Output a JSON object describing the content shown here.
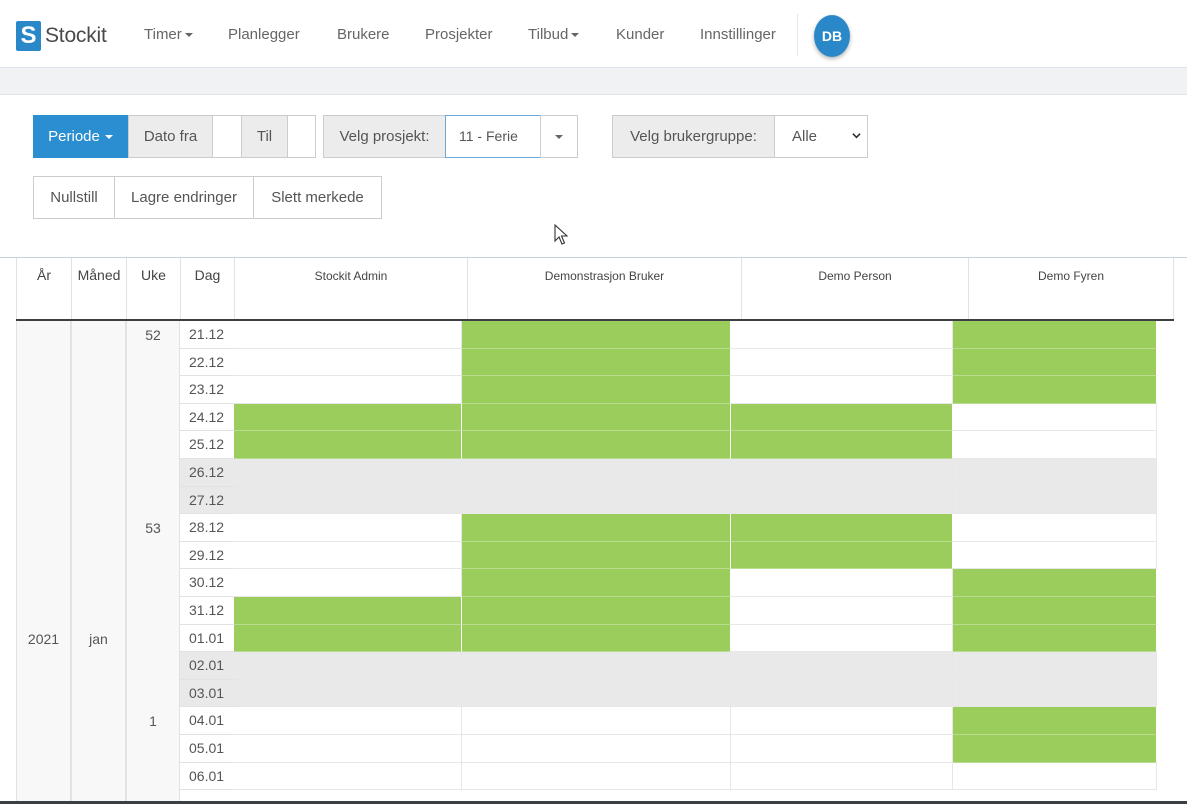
{
  "navbar": {
    "brand_logo": "S",
    "brand_name": "Stockit",
    "items": [
      "Timer",
      "Planlegger",
      "Brukere",
      "Prosjekter",
      "Tilbud",
      "Kunder",
      "Innstillinger"
    ],
    "avatar_initials": "DB"
  },
  "filters": {
    "period_label": "Periode",
    "date_from_label": "Dato fra",
    "date_from_value": "",
    "date_to_label": "Til",
    "date_to_value": "",
    "project_label": "Velg prosjekt:",
    "project_value": "11 - Ferie",
    "usergroup_label": "Velg brukergruppe:",
    "usergroup_value": "Alle",
    "reset_label": "Nullstill",
    "save_label": "Lagre endringer",
    "delete_label": "Slett merkede"
  },
  "grid": {
    "headers": {
      "year": "År",
      "month": "Måned",
      "week": "Uke",
      "day": "Dag"
    },
    "users": [
      "Stockit Admin",
      "Demonstrasjon Bruker",
      "Demo Person",
      "Demo Fyren"
    ],
    "year_label": "2021",
    "month_label": "jan",
    "weeks": [
      {
        "label": "52",
        "start_row": 0
      },
      {
        "label": "53",
        "start_row": 7
      },
      {
        "label": "1",
        "start_row": 14
      }
    ],
    "days": [
      {
        "date": "21.12",
        "weekend": false,
        "marks": [
          0,
          1,
          0,
          1
        ]
      },
      {
        "date": "22.12",
        "weekend": false,
        "marks": [
          0,
          1,
          0,
          1
        ]
      },
      {
        "date": "23.12",
        "weekend": false,
        "marks": [
          0,
          1,
          0,
          1
        ]
      },
      {
        "date": "24.12",
        "weekend": false,
        "marks": [
          1,
          1,
          1,
          0
        ]
      },
      {
        "date": "25.12",
        "weekend": false,
        "marks": [
          1,
          1,
          1,
          0
        ]
      },
      {
        "date": "26.12",
        "weekend": true,
        "marks": [
          0,
          0,
          0,
          0
        ]
      },
      {
        "date": "27.12",
        "weekend": true,
        "marks": [
          0,
          0,
          0,
          0
        ]
      },
      {
        "date": "28.12",
        "weekend": false,
        "marks": [
          0,
          1,
          1,
          0
        ]
      },
      {
        "date": "29.12",
        "weekend": false,
        "marks": [
          0,
          1,
          1,
          0
        ]
      },
      {
        "date": "30.12",
        "weekend": false,
        "marks": [
          0,
          1,
          0,
          1
        ]
      },
      {
        "date": "31.12",
        "weekend": false,
        "marks": [
          1,
          1,
          0,
          1
        ]
      },
      {
        "date": "01.01",
        "weekend": false,
        "marks": [
          1,
          1,
          0,
          1
        ]
      },
      {
        "date": "02.01",
        "weekend": true,
        "marks": [
          0,
          0,
          0,
          0
        ]
      },
      {
        "date": "03.01",
        "weekend": true,
        "marks": [
          0,
          0,
          0,
          0
        ]
      },
      {
        "date": "04.01",
        "weekend": false,
        "marks": [
          0,
          0,
          0,
          1
        ]
      },
      {
        "date": "05.01",
        "weekend": false,
        "marks": [
          0,
          0,
          0,
          1
        ]
      },
      {
        "date": "06.01",
        "weekend": false,
        "marks": [
          0,
          0,
          0,
          0
        ]
      }
    ]
  },
  "colors": {
    "accent": "#2a8ed0",
    "marked": "#9acd5c",
    "weekend": "#e9e9e9"
  }
}
